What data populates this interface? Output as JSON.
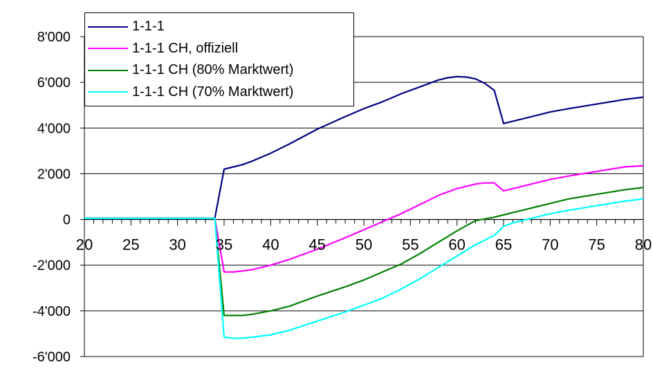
{
  "chart_data": {
    "type": "line",
    "xlim": [
      20,
      80
    ],
    "ylim": [
      -6000,
      8000
    ],
    "x_ticks": [
      20,
      25,
      30,
      35,
      40,
      45,
      50,
      55,
      60,
      65,
      70,
      75,
      80
    ],
    "x_tick_labels": [
      "20",
      "25",
      "30",
      "35",
      "40",
      "45",
      "50",
      "55",
      "60",
      "65",
      "70",
      "75",
      "80"
    ],
    "y_ticks": [
      -6000,
      -4000,
      -2000,
      0,
      2000,
      4000,
      6000,
      8000
    ],
    "y_tick_labels": [
      "-6'000",
      "-4'000",
      "-2'000",
      "0",
      "2'000",
      "4'000",
      "6'000",
      "8'000"
    ],
    "grid": "horizontal",
    "legend_position": "top-left",
    "series": [
      {
        "name": "1-1-1",
        "color": "#000080",
        "points": [
          [
            20,
            50
          ],
          [
            34,
            50
          ],
          [
            35,
            2200
          ],
          [
            36,
            2300
          ],
          [
            37,
            2400
          ],
          [
            38,
            2550
          ],
          [
            40,
            2900
          ],
          [
            42,
            3300
          ],
          [
            45,
            3950
          ],
          [
            48,
            4500
          ],
          [
            50,
            4850
          ],
          [
            52,
            5150
          ],
          [
            54,
            5500
          ],
          [
            56,
            5800
          ],
          [
            58,
            6100
          ],
          [
            59,
            6200
          ],
          [
            60,
            6250
          ],
          [
            61,
            6230
          ],
          [
            62,
            6150
          ],
          [
            63,
            5950
          ],
          [
            64,
            5650
          ],
          [
            65,
            4200
          ],
          [
            66,
            4300
          ],
          [
            68,
            4500
          ],
          [
            70,
            4700
          ],
          [
            72,
            4850
          ],
          [
            75,
            5050
          ],
          [
            78,
            5250
          ],
          [
            80,
            5350
          ]
        ]
      },
      {
        "name": "1-1-1 CH, offiziell",
        "color": "#ff00ff",
        "points": [
          [
            20,
            50
          ],
          [
            34,
            50
          ],
          [
            35,
            -2300
          ],
          [
            36,
            -2300
          ],
          [
            37,
            -2250
          ],
          [
            38,
            -2200
          ],
          [
            40,
            -2000
          ],
          [
            42,
            -1750
          ],
          [
            45,
            -1300
          ],
          [
            48,
            -800
          ],
          [
            50,
            -450
          ],
          [
            52,
            -100
          ],
          [
            54,
            250
          ],
          [
            56,
            650
          ],
          [
            58,
            1050
          ],
          [
            60,
            1350
          ],
          [
            62,
            1550
          ],
          [
            63,
            1600
          ],
          [
            64,
            1600
          ],
          [
            65,
            1250
          ],
          [
            66,
            1350
          ],
          [
            68,
            1550
          ],
          [
            70,
            1750
          ],
          [
            72,
            1900
          ],
          [
            75,
            2100
          ],
          [
            78,
            2300
          ],
          [
            80,
            2350
          ]
        ]
      },
      {
        "name": "1-1-1 CH (80% Marktwert)",
        "color": "#008000",
        "points": [
          [
            20,
            50
          ],
          [
            34,
            50
          ],
          [
            35,
            -4200
          ],
          [
            36,
            -4200
          ],
          [
            37,
            -4200
          ],
          [
            38,
            -4150
          ],
          [
            40,
            -4000
          ],
          [
            42,
            -3800
          ],
          [
            45,
            -3350
          ],
          [
            48,
            -2950
          ],
          [
            50,
            -2650
          ],
          [
            52,
            -2300
          ],
          [
            54,
            -1950
          ],
          [
            56,
            -1500
          ],
          [
            58,
            -1000
          ],
          [
            60,
            -500
          ],
          [
            62,
            -50
          ],
          [
            64,
            100
          ],
          [
            65,
            200
          ],
          [
            66,
            300
          ],
          [
            68,
            500
          ],
          [
            70,
            700
          ],
          [
            72,
            900
          ],
          [
            75,
            1100
          ],
          [
            78,
            1300
          ],
          [
            80,
            1400
          ]
        ]
      },
      {
        "name": "1-1-1 CH (70% Marktwert)",
        "color": "#00ffff",
        "points": [
          [
            20,
            50
          ],
          [
            34,
            50
          ],
          [
            35,
            -5150
          ],
          [
            36,
            -5200
          ],
          [
            37,
            -5200
          ],
          [
            38,
            -5150
          ],
          [
            40,
            -5050
          ],
          [
            42,
            -4850
          ],
          [
            45,
            -4450
          ],
          [
            48,
            -4050
          ],
          [
            50,
            -3750
          ],
          [
            52,
            -3450
          ],
          [
            54,
            -3050
          ],
          [
            56,
            -2600
          ],
          [
            58,
            -2100
          ],
          [
            60,
            -1600
          ],
          [
            62,
            -1100
          ],
          [
            64,
            -700
          ],
          [
            65,
            -300
          ],
          [
            66,
            -150
          ],
          [
            68,
            50
          ],
          [
            70,
            250
          ],
          [
            72,
            400
          ],
          [
            75,
            600
          ],
          [
            78,
            800
          ],
          [
            80,
            900
          ]
        ]
      }
    ]
  }
}
